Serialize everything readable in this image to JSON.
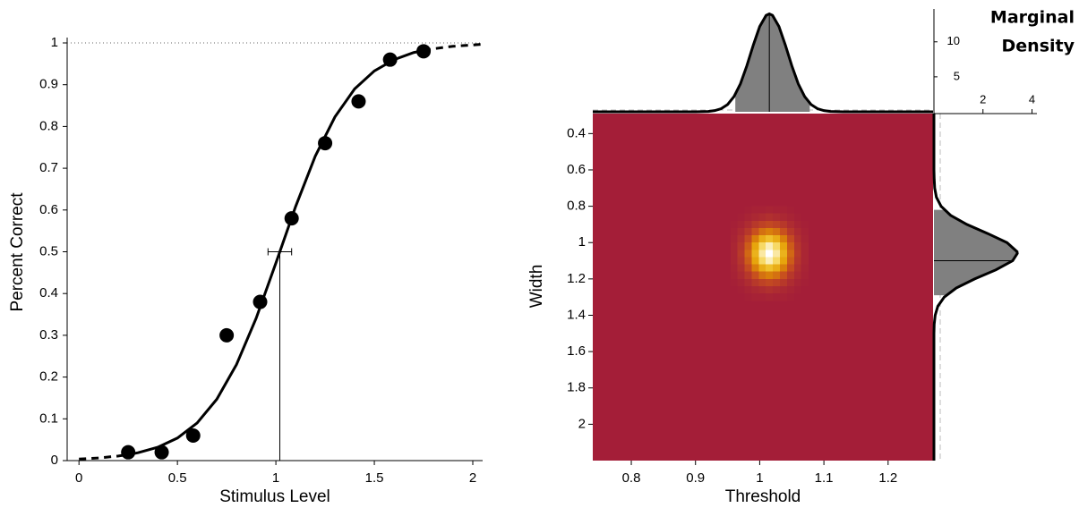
{
  "chart_data": [
    {
      "type": "scatter",
      "xlabel": "Stimulus Level",
      "ylabel": "Percent Correct",
      "x": [
        0.25,
        0.42,
        0.58,
        0.75,
        0.92,
        1.08,
        1.25,
        1.42,
        1.58,
        1.75
      ],
      "values": [
        0.02,
        0.02,
        0.06,
        0.3,
        0.38,
        0.58,
        0.76,
        0.86,
        0.96,
        0.98
      ],
      "color": "#000000",
      "fit": [
        {
          "dashed": true,
          "x": [
            0,
            0.1,
            0.2,
            0.25
          ],
          "values": [
            0.0037,
            0.0063,
            0.011,
            0.0143
          ]
        },
        {
          "dashed": false,
          "x": [
            0.25,
            0.3,
            0.4,
            0.5,
            0.6,
            0.7,
            0.8,
            0.9,
            1.0,
            1.1,
            1.2,
            1.3,
            1.4,
            1.5,
            1.6,
            1.7,
            1.75
          ],
          "values": [
            0.0143,
            0.0188,
            0.032,
            0.054,
            0.09,
            0.147,
            0.23,
            0.341,
            0.473,
            0.608,
            0.729,
            0.823,
            0.89,
            0.933,
            0.96,
            0.977,
            0.982
          ]
        },
        {
          "dashed": true,
          "x": [
            1.75,
            1.8,
            1.9,
            2.0,
            2.05
          ],
          "values": [
            0.982,
            0.986,
            0.992,
            0.995,
            0.997
          ]
        }
      ],
      "threshold": {
        "x": 1.02,
        "y": 0.5,
        "ci": [
          0.96,
          1.08
        ]
      },
      "guide_y": 1,
      "xlim": [
        -0.06,
        2.05
      ],
      "ylim": [
        0,
        1
      ],
      "xticks": [
        0,
        0.5,
        1,
        1.5,
        2
      ],
      "yticks": [
        0,
        0.1,
        0.2,
        0.3,
        0.4,
        0.5,
        0.6,
        0.7,
        0.8,
        0.9,
        1
      ]
    },
    {
      "type": "heatmap",
      "xlabel": "Threshold",
      "ylabel": "Width",
      "title_lines": [
        "Marginal",
        "Density"
      ],
      "xlim": [
        0.74,
        1.27
      ],
      "ylim": [
        0.29,
        2.2
      ],
      "y_inverted": true,
      "xticks": [
        0.8,
        0.9,
        1,
        1.1,
        1.2
      ],
      "yticks": [
        0.4,
        0.6,
        0.8,
        1,
        1.2,
        1.4,
        1.6,
        1.8,
        2
      ],
      "colormap": [
        "#a41e38",
        "#c8501e",
        "#e39a00",
        "#f5d040",
        "#ffffff"
      ],
      "cells": {
        "x": [
          0.96,
          0.971,
          0.982,
          0.993,
          1.004,
          1.015,
          1.026,
          1.037,
          1.048,
          1.059,
          1.07
        ],
        "y": [
          0.82,
          0.86,
          0.9,
          0.94,
          0.98,
          1.02,
          1.06,
          1.1,
          1.14,
          1.18,
          1.22,
          1.26,
          1.3
        ],
        "z": [
          [
            0,
            0,
            0.01,
            0.02,
            0.02,
            0.03,
            0.02,
            0.02,
            0.01,
            0,
            0
          ],
          [
            0,
            0.01,
            0.03,
            0.05,
            0.07,
            0.09,
            0.07,
            0.05,
            0.03,
            0.01,
            0
          ],
          [
            0.01,
            0.03,
            0.07,
            0.13,
            0.18,
            0.21,
            0.18,
            0.13,
            0.07,
            0.03,
            0.01
          ],
          [
            0.02,
            0.06,
            0.13,
            0.25,
            0.36,
            0.41,
            0.36,
            0.25,
            0.13,
            0.06,
            0.02
          ],
          [
            0.03,
            0.09,
            0.22,
            0.41,
            0.59,
            0.67,
            0.59,
            0.41,
            0.22,
            0.09,
            0.03
          ],
          [
            0.04,
            0.12,
            0.29,
            0.55,
            0.8,
            0.91,
            0.8,
            0.55,
            0.29,
            0.12,
            0.04
          ],
          [
            0.04,
            0.14,
            0.33,
            0.61,
            0.88,
            1,
            0.88,
            0.61,
            0.33,
            0.14,
            0.04
          ],
          [
            0.04,
            0.12,
            0.29,
            0.55,
            0.8,
            0.91,
            0.8,
            0.55,
            0.29,
            0.12,
            0.04
          ],
          [
            0.03,
            0.09,
            0.22,
            0.41,
            0.59,
            0.67,
            0.59,
            0.41,
            0.22,
            0.09,
            0.03
          ],
          [
            0.02,
            0.06,
            0.13,
            0.25,
            0.36,
            0.41,
            0.36,
            0.25,
            0.13,
            0.06,
            0.02
          ],
          [
            0.01,
            0.03,
            0.07,
            0.13,
            0.18,
            0.21,
            0.18,
            0.13,
            0.07,
            0.03,
            0.01
          ],
          [
            0,
            0.01,
            0.03,
            0.05,
            0.07,
            0.09,
            0.07,
            0.05,
            0.03,
            0.01,
            0
          ],
          [
            0,
            0,
            0.01,
            0.02,
            0.02,
            0.03,
            0.02,
            0.02,
            0.01,
            0,
            0
          ]
        ]
      },
      "marginal_x": {
        "x": [
          0.74,
          0.9,
          0.92,
          0.93,
          0.94,
          0.95,
          0.96,
          0.97,
          0.98,
          0.99,
          1.0,
          1.01,
          1.015,
          1.02,
          1.03,
          1.04,
          1.05,
          1.06,
          1.07,
          1.08,
          1.09,
          1.1,
          1.11,
          1.13,
          1.27
        ],
        "values": [
          0,
          0,
          0.05,
          0.17,
          0.44,
          1.04,
          2.18,
          4.01,
          6.59,
          9.53,
          12.19,
          13.78,
          14,
          13.78,
          12.19,
          9.53,
          6.59,
          4.01,
          2.18,
          1.04,
          0.44,
          0.17,
          0.05,
          0,
          0
        ],
        "ylim": [
          0,
          14.7
        ],
        "yticks": [
          5,
          10
        ],
        "ci": [
          0.962,
          1.078
        ],
        "estimate": 1.015,
        "color": "#808080"
      },
      "marginal_y": {
        "y": [
          0.29,
          0.6,
          0.65,
          0.7,
          0.75,
          0.8,
          0.85,
          0.9,
          0.95,
          1.0,
          1.05,
          1.06,
          1.1,
          1.15,
          1.2,
          1.25,
          1.3,
          1.35,
          1.4,
          1.45,
          1.5,
          2.2
        ],
        "values": [
          0,
          0,
          0.01,
          0.03,
          0.1,
          0.29,
          0.68,
          1.34,
          2.19,
          2.98,
          3.39,
          3.4,
          3.21,
          2.53,
          1.66,
          0.91,
          0.42,
          0.16,
          0.05,
          0.01,
          0,
          0
        ],
        "xlim": [
          0,
          4.2
        ],
        "xticks": [
          2,
          4
        ],
        "ci": [
          0.82,
          1.29
        ],
        "estimate": 1.1,
        "color": "#808080"
      }
    }
  ]
}
